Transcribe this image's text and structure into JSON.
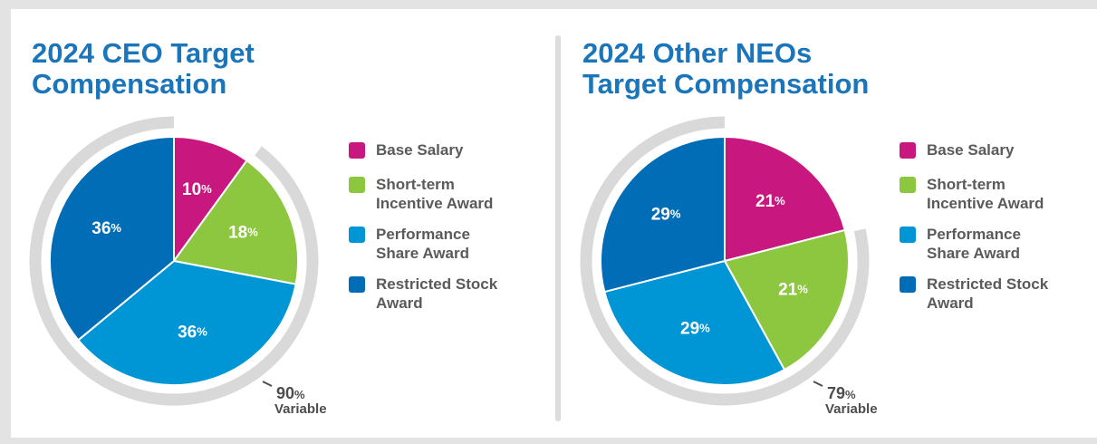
{
  "chart_data": [
    {
      "type": "pie",
      "title": [
        "2024 CEO Target",
        "Compensation"
      ],
      "categories": [
        "Base Salary",
        "Short-term Incentive Award",
        "Performance Share Award",
        "Restricted Stock Award"
      ],
      "values": [
        10,
        18,
        36,
        36
      ],
      "value_labels": [
        "10%",
        "18%",
        "36%",
        "36%"
      ],
      "colors": [
        "#c8177f",
        "#8dc63f",
        "#0096d6",
        "#006db6"
      ],
      "annotation": {
        "value": 90,
        "label": "90%",
        "text": "Variable"
      }
    },
    {
      "type": "pie",
      "title": [
        "2024 Other NEOs",
        "Target Compensation"
      ],
      "categories": [
        "Base Salary",
        "Short-term Incentive Award",
        "Performance Share Award",
        "Restricted Stock Award"
      ],
      "values": [
        21,
        21,
        29,
        29
      ],
      "value_labels": [
        "21%",
        "21%",
        "29%",
        "29%"
      ],
      "colors": [
        "#c8177f",
        "#8dc63f",
        "#0096d6",
        "#006db6"
      ],
      "annotation": {
        "value": 79,
        "label": "79%",
        "text": "Variable"
      }
    }
  ]
}
